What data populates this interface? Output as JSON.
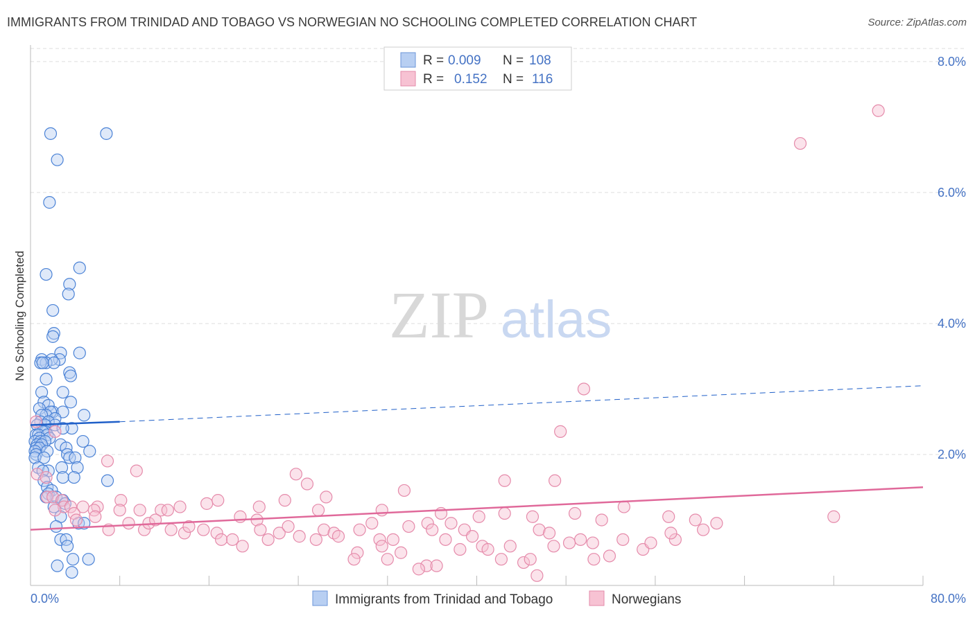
{
  "title": "IMMIGRANTS FROM TRINIDAD AND TOBAGO VS NORWEGIAN NO SCHOOLING COMPLETED CORRELATION CHART",
  "source": "Source: ZipAtlas.com",
  "watermark": {
    "zip": "ZIP",
    "atlas": "atlas"
  },
  "colors": {
    "blue": "#4472c4",
    "blue_fill": "#b8cff2",
    "blue_line": "#1f5fc8",
    "pink": "#e8749c",
    "pink_fill": "#f7c2d3",
    "pink_line": "#e0699a",
    "grid": "#dddddd"
  },
  "legend_top": {
    "rows": [
      {
        "r_label": "R =",
        "r_value": "0.009",
        "n_label": "N =",
        "n_value": "108"
      },
      {
        "r_label": "R =",
        "r_value": "0.152",
        "n_label": "N =",
        "n_value": "116"
      }
    ]
  },
  "chart_data": {
    "type": "scatter",
    "title": "IMMIGRANTS FROM TRINIDAD AND TOBAGO VS NORWEGIAN NO SCHOOLING COMPLETED CORRELATION CHART",
    "xlabel": "",
    "ylabel": "No Schooling Completed",
    "xlim": [
      0,
      80
    ],
    "ylim": [
      0,
      8.2
    ],
    "x_tick_labels": [
      "0.0%",
      "80.0%"
    ],
    "y_ticks": [
      2,
      4,
      6,
      8
    ],
    "y_tick_labels": [
      "2.0%",
      "4.0%",
      "6.0%",
      "8.0%"
    ],
    "grid": true,
    "legend_position": "bottom",
    "series": [
      {
        "name": "Immigrants from Trinidad and Tobago",
        "r": 0.009,
        "n": 108,
        "trend": {
          "x": [
            0,
            8
          ],
          "y": [
            2.45,
            2.5
          ],
          "dashed_to_x": 80,
          "dashed_y": 3.05
        },
        "points": [
          [
            1.8,
            6.9
          ],
          [
            6.8,
            6.9
          ],
          [
            2.4,
            6.5
          ],
          [
            1.7,
            5.85
          ],
          [
            4.4,
            4.85
          ],
          [
            1.4,
            4.75
          ],
          [
            3.5,
            4.6
          ],
          [
            3.4,
            4.45
          ],
          [
            2.0,
            4.2
          ],
          [
            2.1,
            3.85
          ],
          [
            2.0,
            3.8
          ],
          [
            2.7,
            3.55
          ],
          [
            4.4,
            3.55
          ],
          [
            1.0,
            3.45
          ],
          [
            2.6,
            3.45
          ],
          [
            1.9,
            3.45
          ],
          [
            1.4,
            3.4
          ],
          [
            0.9,
            3.4
          ],
          [
            1.1,
            3.4
          ],
          [
            2.1,
            3.4
          ],
          [
            3.5,
            3.25
          ],
          [
            3.6,
            3.2
          ],
          [
            1.4,
            3.15
          ],
          [
            2.9,
            2.95
          ],
          [
            1.0,
            2.95
          ],
          [
            1.2,
            2.8
          ],
          [
            3.6,
            2.8
          ],
          [
            1.6,
            2.75
          ],
          [
            0.8,
            2.7
          ],
          [
            2.0,
            2.65
          ],
          [
            1.8,
            2.65
          ],
          [
            2.9,
            2.65
          ],
          [
            4.8,
            2.6
          ],
          [
            1.4,
            2.6
          ],
          [
            1.0,
            2.6
          ],
          [
            2.2,
            2.55
          ],
          [
            0.9,
            2.5
          ],
          [
            1.6,
            2.5
          ],
          [
            2.2,
            2.45
          ],
          [
            1.3,
            2.45
          ],
          [
            0.6,
            2.45
          ],
          [
            3.7,
            2.4
          ],
          [
            2.9,
            2.4
          ],
          [
            1.3,
            2.35
          ],
          [
            1.1,
            2.35
          ],
          [
            0.5,
            2.3
          ],
          [
            0.7,
            2.3
          ],
          [
            1.5,
            2.3
          ],
          [
            0.8,
            2.25
          ],
          [
            1.7,
            2.25
          ],
          [
            0.4,
            2.2
          ],
          [
            0.9,
            2.2
          ],
          [
            1.3,
            2.2
          ],
          [
            4.7,
            2.2
          ],
          [
            0.6,
            2.15
          ],
          [
            1.0,
            2.15
          ],
          [
            2.7,
            2.15
          ],
          [
            0.5,
            2.1
          ],
          [
            0.8,
            2.1
          ],
          [
            3.2,
            2.1
          ],
          [
            0.4,
            2.05
          ],
          [
            1.5,
            2.05
          ],
          [
            5.3,
            2.05
          ],
          [
            0.5,
            2.0
          ],
          [
            3.3,
            2.0
          ],
          [
            0.4,
            1.95
          ],
          [
            1.2,
            1.95
          ],
          [
            3.5,
            1.95
          ],
          [
            4.0,
            1.95
          ],
          [
            0.7,
            1.8
          ],
          [
            2.8,
            1.8
          ],
          [
            4.2,
            1.8
          ],
          [
            1.6,
            1.75
          ],
          [
            1.1,
            1.75
          ],
          [
            2.9,
            1.65
          ],
          [
            3.9,
            1.65
          ],
          [
            6.9,
            1.6
          ],
          [
            1.2,
            1.6
          ],
          [
            1.5,
            1.5
          ],
          [
            1.9,
            1.45
          ],
          [
            1.6,
            1.4
          ],
          [
            2.3,
            1.35
          ],
          [
            1.4,
            1.35
          ],
          [
            2.9,
            1.3
          ],
          [
            3.1,
            1.25
          ],
          [
            2.1,
            1.2
          ],
          [
            2.7,
            1.05
          ],
          [
            4.3,
            0.95
          ],
          [
            4.8,
            0.95
          ],
          [
            2.3,
            0.9
          ],
          [
            2.7,
            0.7
          ],
          [
            3.2,
            0.7
          ],
          [
            3.3,
            0.6
          ],
          [
            3.8,
            0.4
          ],
          [
            5.2,
            0.4
          ],
          [
            2.4,
            0.3
          ],
          [
            3.7,
            0.2
          ]
        ]
      },
      {
        "name": "Norwegians",
        "r": 0.152,
        "n": 116,
        "trend": {
          "x": [
            0,
            80
          ],
          "y": [
            0.85,
            1.5
          ]
        },
        "points": [
          [
            76.0,
            7.25
          ],
          [
            69.0,
            6.75
          ],
          [
            49.6,
            3.0
          ],
          [
            47.5,
            2.35
          ],
          [
            2.2,
            2.35
          ],
          [
            0.5,
            2.5
          ],
          [
            6.9,
            1.9
          ],
          [
            9.5,
            1.75
          ],
          [
            0.6,
            1.7
          ],
          [
            1.4,
            1.65
          ],
          [
            47.0,
            1.6
          ],
          [
            42.5,
            1.6
          ],
          [
            23.8,
            1.7
          ],
          [
            24.8,
            1.55
          ],
          [
            33.5,
            1.45
          ],
          [
            26.5,
            1.35
          ],
          [
            4.7,
            1.2
          ],
          [
            6.0,
            1.2
          ],
          [
            5.7,
            1.15
          ],
          [
            8.1,
            1.3
          ],
          [
            8.0,
            1.15
          ],
          [
            9.8,
            1.15
          ],
          [
            11.7,
            1.15
          ],
          [
            12.3,
            1.15
          ],
          [
            1.5,
            1.35
          ],
          [
            2.0,
            1.35
          ],
          [
            2.8,
            1.3
          ],
          [
            3.0,
            1.2
          ],
          [
            3.6,
            1.2
          ],
          [
            3.9,
            1.1
          ],
          [
            2.2,
            1.15
          ],
          [
            4.1,
            1.0
          ],
          [
            5.8,
            1.05
          ],
          [
            13.4,
            1.2
          ],
          [
            15.8,
            1.25
          ],
          [
            16.8,
            1.3
          ],
          [
            20.5,
            1.2
          ],
          [
            22.8,
            1.3
          ],
          [
            25.8,
            1.15
          ],
          [
            20.3,
            1.0
          ],
          [
            31.5,
            1.15
          ],
          [
            36.8,
            1.1
          ],
          [
            40.2,
            1.05
          ],
          [
            42.5,
            1.1
          ],
          [
            45.0,
            1.05
          ],
          [
            48.8,
            1.1
          ],
          [
            51.2,
            1.0
          ],
          [
            53.2,
            1.2
          ],
          [
            57.2,
            1.05
          ],
          [
            61.5,
            0.95
          ],
          [
            59.6,
            1.0
          ],
          [
            72.0,
            1.05
          ],
          [
            7.0,
            0.85
          ],
          [
            8.8,
            0.95
          ],
          [
            10.2,
            0.85
          ],
          [
            10.6,
            0.95
          ],
          [
            11.2,
            1.0
          ],
          [
            12.6,
            0.85
          ],
          [
            13.8,
            0.8
          ],
          [
            14.2,
            0.9
          ],
          [
            15.5,
            0.85
          ],
          [
            16.7,
            0.8
          ],
          [
            17.1,
            0.7
          ],
          [
            18.1,
            0.7
          ],
          [
            18.8,
            1.05
          ],
          [
            19.0,
            0.6
          ],
          [
            20.6,
            0.85
          ],
          [
            21.3,
            0.7
          ],
          [
            22.3,
            0.8
          ],
          [
            23.1,
            0.9
          ],
          [
            24.1,
            0.75
          ],
          [
            25.6,
            0.7
          ],
          [
            26.3,
            0.85
          ],
          [
            27.2,
            0.8
          ],
          [
            27.6,
            0.75
          ],
          [
            29.5,
            0.85
          ],
          [
            29.3,
            0.5
          ],
          [
            29.0,
            0.4
          ],
          [
            30.6,
            0.95
          ],
          [
            31.3,
            0.7
          ],
          [
            31.5,
            0.6
          ],
          [
            32.5,
            0.7
          ],
          [
            33.2,
            0.5
          ],
          [
            33.9,
            0.9
          ],
          [
            35.6,
            0.95
          ],
          [
            36.0,
            0.85
          ],
          [
            37.2,
            0.7
          ],
          [
            37.7,
            0.95
          ],
          [
            38.9,
            0.85
          ],
          [
            39.6,
            0.75
          ],
          [
            38.5,
            0.55
          ],
          [
            40.5,
            0.6
          ],
          [
            41.0,
            0.55
          ],
          [
            42.2,
            0.4
          ],
          [
            43.0,
            0.6
          ],
          [
            44.2,
            0.35
          ],
          [
            44.8,
            0.4
          ],
          [
            45.6,
            0.85
          ],
          [
            46.5,
            0.8
          ],
          [
            46.9,
            0.6
          ],
          [
            48.3,
            0.65
          ],
          [
            49.3,
            0.7
          ],
          [
            50.4,
            0.65
          ],
          [
            50.5,
            0.4
          ],
          [
            51.9,
            0.45
          ],
          [
            53.1,
            0.7
          ],
          [
            54.9,
            0.55
          ],
          [
            55.6,
            0.65
          ],
          [
            57.8,
            0.7
          ],
          [
            57.4,
            0.8
          ],
          [
            60.3,
            0.85
          ],
          [
            35.5,
            0.3
          ],
          [
            34.8,
            0.25
          ],
          [
            36.4,
            0.3
          ],
          [
            45.4,
            0.15
          ],
          [
            32.0,
            0.4
          ]
        ]
      }
    ]
  }
}
